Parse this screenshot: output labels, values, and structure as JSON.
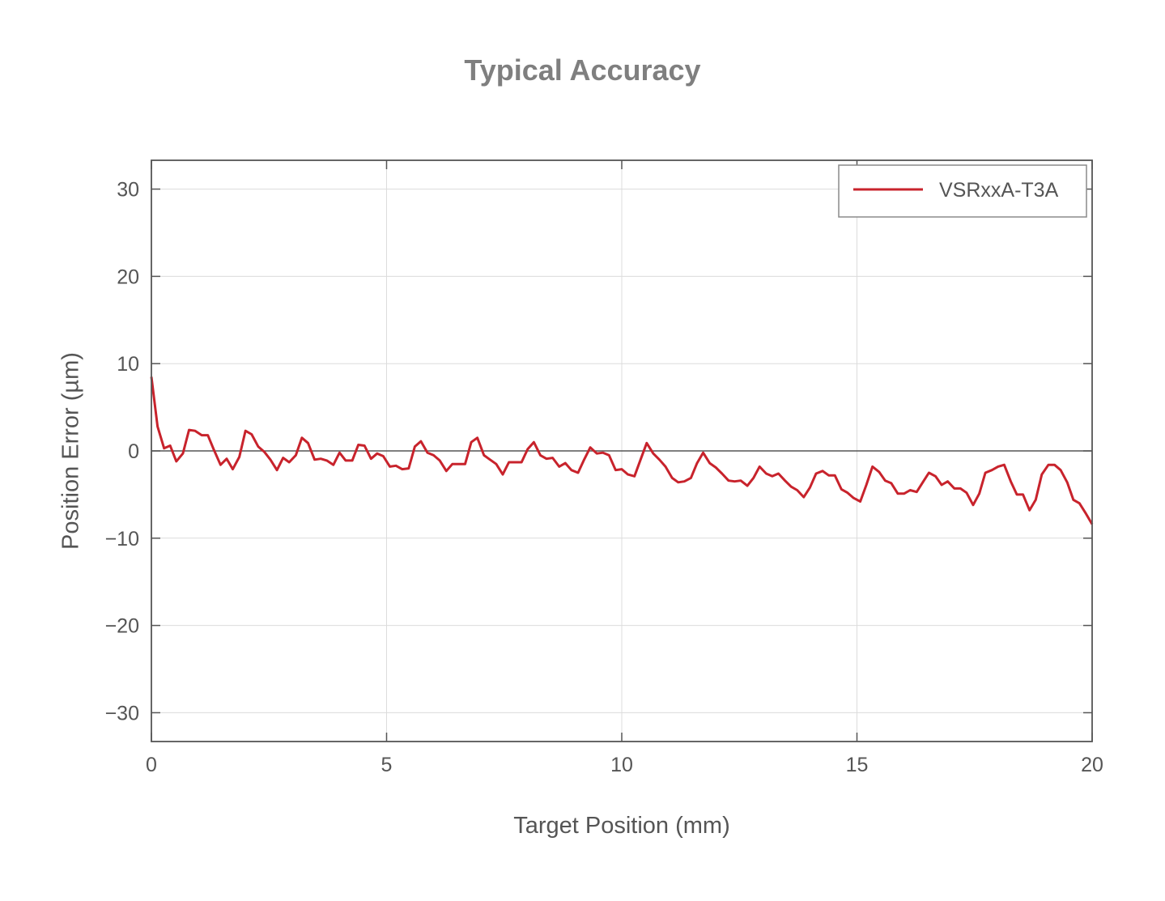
{
  "chart_data": {
    "type": "line",
    "title": "Typical Accuracy",
    "xlabel": "Target Position (mm)",
    "ylabel": "Position Error (µm)",
    "xlim": [
      0,
      20
    ],
    "ylim": [
      -33.3,
      33.3
    ],
    "x_ticks": [
      0,
      5,
      10,
      15,
      20
    ],
    "y_ticks": [
      30,
      20,
      10,
      0,
      -10,
      -20,
      -30
    ],
    "x_tick_labels": [
      "0",
      "5",
      "10",
      "15",
      "20"
    ],
    "y_tick_labels": [
      "30",
      "20",
      "10",
      "0",
      "−10",
      "−20",
      "−30"
    ],
    "grid": true,
    "zero_line": true,
    "legend_position": "top-right",
    "series": [
      {
        "name": "VSRxxA-T3A",
        "color": "#c8232c",
        "x": [
          0,
          0.13,
          0.27,
          0.4,
          0.53,
          0.67,
          0.8,
          0.93,
          1.07,
          1.2,
          1.33,
          1.47,
          1.6,
          1.73,
          1.87,
          2,
          2.13,
          2.27,
          2.4,
          2.53,
          2.67,
          2.8,
          2.93,
          3.07,
          3.2,
          3.33,
          3.47,
          3.6,
          3.73,
          3.87,
          4,
          4.13,
          4.27,
          4.4,
          4.53,
          4.67,
          4.8,
          4.93,
          5.07,
          5.2,
          5.33,
          5.47,
          5.6,
          5.73,
          5.87,
          6,
          6.13,
          6.27,
          6.4,
          6.53,
          6.67,
          6.8,
          6.93,
          7.07,
          7.2,
          7.33,
          7.47,
          7.6,
          7.73,
          7.87,
          8,
          8.13,
          8.27,
          8.4,
          8.53,
          8.67,
          8.8,
          8.93,
          9.07,
          9.2,
          9.33,
          9.47,
          9.6,
          9.73,
          9.87,
          10,
          10.13,
          10.27,
          10.4,
          10.53,
          10.67,
          10.8,
          10.93,
          11.07,
          11.2,
          11.33,
          11.47,
          11.6,
          11.73,
          11.87,
          12,
          12.13,
          12.27,
          12.4,
          12.53,
          12.67,
          12.8,
          12.93,
          13.07,
          13.2,
          13.33,
          13.47,
          13.6,
          13.73,
          13.87,
          14,
          14.13,
          14.27,
          14.4,
          14.53,
          14.67,
          14.8,
          14.93,
          15.07,
          15.2,
          15.33,
          15.47,
          15.6,
          15.73,
          15.87,
          16,
          16.13,
          16.27,
          16.4,
          16.53,
          16.67,
          16.8,
          16.93,
          17.07,
          17.2,
          17.33,
          17.47,
          17.6,
          17.73,
          17.87,
          18,
          18.13,
          18.27,
          18.4,
          18.53,
          18.67,
          18.8,
          18.93,
          19.07,
          19.2,
          19.33,
          19.47,
          19.6,
          19.73,
          19.87,
          20
        ],
        "y": [
          8.5,
          2.8,
          0.3,
          0.6,
          -1.2,
          -0.3,
          2.4,
          2.3,
          1.8,
          1.8,
          0.1,
          -1.6,
          -0.9,
          -2.1,
          -0.7,
          2.3,
          1.9,
          0.5,
          -0.1,
          -1.0,
          -2.2,
          -0.8,
          -1.3,
          -0.5,
          1.5,
          0.9,
          -1.0,
          -0.9,
          -1.1,
          -1.6,
          -0.2,
          -1.1,
          -1.1,
          0.7,
          0.6,
          -0.9,
          -0.3,
          -0.6,
          -1.8,
          -1.7,
          -2.1,
          -2.0,
          0.5,
          1.1,
          -0.2,
          -0.5,
          -1.1,
          -2.3,
          -1.5,
          -1.5,
          -1.5,
          1.0,
          1.5,
          -0.5,
          -1.0,
          -1.5,
          -2.7,
          -1.3,
          -1.3,
          -1.3,
          0.2,
          1.0,
          -0.5,
          -0.9,
          -0.8,
          -1.8,
          -1.4,
          -2.2,
          -2.5,
          -1.0,
          0.4,
          -0.3,
          -0.2,
          -0.5,
          -2.2,
          -2.1,
          -2.7,
          -2.9,
          -1.0,
          0.9,
          -0.3,
          -1.0,
          -1.8,
          -3.1,
          -3.6,
          -3.5,
          -3.1,
          -1.4,
          -0.2,
          -1.4,
          -1.9,
          -2.6,
          -3.4,
          -3.5,
          -3.4,
          -4.0,
          -3.1,
          -1.8,
          -2.6,
          -2.9,
          -2.6,
          -3.4,
          -4.1,
          -4.5,
          -5.3,
          -4.2,
          -2.6,
          -2.3,
          -2.8,
          -2.8,
          -4.4,
          -4.8,
          -5.4,
          -5.8,
          -3.9,
          -1.8,
          -2.4,
          -3.4,
          -3.7,
          -4.9,
          -4.9,
          -4.5,
          -4.7,
          -3.6,
          -2.5,
          -2.9,
          -3.9,
          -3.5,
          -4.3,
          -4.3,
          -4.8,
          -6.2,
          -4.9,
          -2.5,
          -2.2,
          -1.8,
          -1.6,
          -3.5,
          -5.0,
          -5.0,
          -6.8,
          -5.6,
          -2.7,
          -1.6,
          -1.6,
          -2.2,
          -3.6,
          -5.6,
          -6.0,
          -7.2,
          -8.4
        ]
      }
    ]
  }
}
